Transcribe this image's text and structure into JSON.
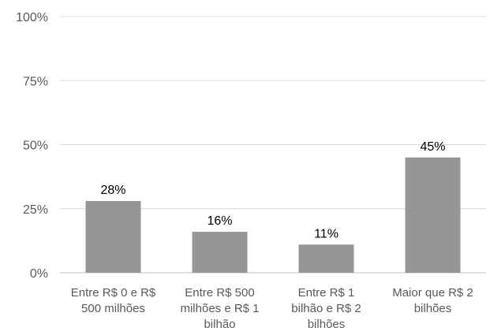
{
  "chart_data": {
    "type": "bar",
    "categories": [
      [
        "Entre R$ 0 e R$",
        "500 milhões"
      ],
      [
        "Entre R$ 500",
        "milhões e R$ 1",
        "bilhão"
      ],
      [
        "Entre R$ 1",
        "bilhão e R$ 2",
        "bilhões"
      ],
      [
        "Maior que R$ 2",
        "bilhões"
      ]
    ],
    "values": [
      28,
      16,
      11,
      45
    ],
    "data_labels": [
      "28%",
      "16%",
      "11%",
      "45%"
    ],
    "ylim": [
      0,
      100
    ],
    "yticks": [
      0,
      25,
      50,
      75,
      100
    ],
    "ytick_labels": [
      "0%",
      "25%",
      "50%",
      "75%",
      "100%"
    ],
    "bar_color": "#969696",
    "grid": true,
    "title": "",
    "xlabel": "",
    "ylabel": ""
  }
}
